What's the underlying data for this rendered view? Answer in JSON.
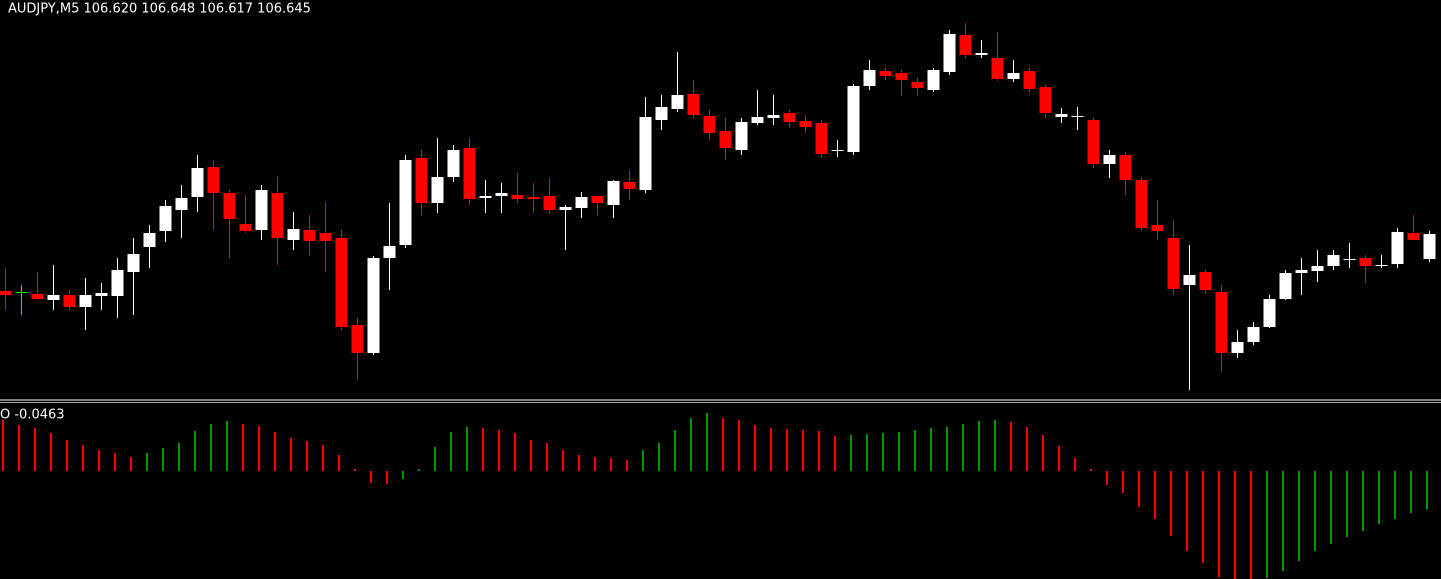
{
  "chart_data": [
    {
      "type": "candlestick",
      "title": "AUDJPY,M5  106.620 106.648 106.617 106.645",
      "ylim": [
        106.479,
        106.879
      ],
      "bull_color": "#ffffff",
      "bear_color": "#ff0000",
      "doji_color": "#00ff00",
      "open": [
        106.588,
        106.587,
        106.585,
        106.579,
        106.584,
        106.572,
        106.583,
        106.583,
        106.607,
        106.632,
        106.648,
        106.669,
        106.682,
        106.712,
        106.686,
        106.655,
        106.649,
        106.686,
        106.639,
        106.649,
        106.646,
        106.641,
        106.554,
        106.526,
        106.621,
        106.634,
        106.721,
        106.676,
        106.702,
        106.731,
        106.681,
        106.683,
        106.684,
        106.682,
        106.683,
        106.669,
        106.671,
        106.683,
        106.674,
        106.697,
        106.689,
        106.759,
        106.77,
        106.785,
        106.763,
        106.748,
        106.729,
        106.756,
        106.761,
        106.766,
        106.758,
        106.756,
        106.728,
        106.727,
        106.793,
        106.808,
        106.806,
        106.797,
        106.789,
        106.807,
        106.844,
        106.824,
        106.821,
        106.8,
        106.808,
        106.792,
        106.762,
        106.762,
        106.759,
        106.715,
        106.724,
        106.699,
        106.654,
        106.641,
        106.594,
        106.607,
        106.587,
        106.526,
        106.537,
        106.552,
        106.58,
        106.606,
        106.608,
        106.613,
        106.619,
        106.621,
        106.613,
        106.615,
        106.646,
        106.62
      ],
      "high": [
        106.611,
        106.594,
        106.607,
        106.614,
        106.589,
        106.601,
        106.596,
        106.621,
        106.641,
        106.654,
        106.679,
        106.694,
        106.724,
        106.719,
        106.689,
        106.684,
        106.694,
        106.702,
        106.667,
        106.664,
        106.677,
        106.649,
        106.561,
        106.623,
        106.676,
        106.724,
        106.729,
        106.741,
        106.734,
        106.741,
        106.699,
        106.696,
        106.706,
        106.696,
        106.701,
        106.674,
        106.687,
        106.684,
        106.699,
        106.709,
        106.782,
        106.784,
        106.827,
        106.799,
        106.769,
        106.761,
        106.761,
        106.789,
        106.784,
        106.769,
        106.764,
        106.759,
        106.739,
        106.795,
        106.819,
        106.811,
        106.809,
        106.801,
        106.811,
        106.849,
        106.856,
        106.839,
        106.847,
        106.819,
        106.811,
        106.794,
        106.771,
        106.772,
        106.761,
        106.729,
        106.727,
        106.701,
        106.679,
        106.659,
        106.634,
        106.609,
        106.594,
        106.549,
        106.557,
        106.584,
        106.609,
        106.621,
        106.629,
        106.629,
        106.636,
        106.624,
        106.624,
        106.651,
        106.664,
        106.648
      ],
      "low": [
        106.569,
        106.564,
        106.579,
        106.569,
        106.569,
        106.549,
        106.569,
        106.561,
        106.564,
        106.611,
        106.637,
        106.641,
        106.667,
        106.649,
        106.621,
        106.646,
        106.639,
        106.614,
        106.629,
        106.624,
        106.607,
        106.549,
        106.499,
        106.524,
        106.589,
        106.631,
        106.664,
        106.666,
        106.697,
        106.674,
        106.666,
        106.666,
        106.676,
        106.666,
        106.666,
        106.629,
        106.661,
        106.664,
        106.661,
        106.679,
        106.686,
        106.749,
        106.767,
        106.761,
        106.739,
        106.719,
        106.724,
        106.754,
        106.754,
        106.751,
        106.746,
        106.722,
        106.722,
        106.724,
        106.789,
        106.799,
        106.783,
        106.784,
        106.787,
        106.804,
        106.821,
        106.821,
        106.798,
        106.797,
        106.787,
        106.761,
        106.756,
        106.749,
        106.711,
        106.701,
        106.684,
        106.649,
        106.639,
        106.584,
        106.489,
        106.586,
        106.507,
        106.521,
        106.534,
        106.551,
        106.579,
        106.584,
        106.597,
        106.609,
        106.611,
        106.596,
        106.611,
        106.611,
        106.639,
        106.617
      ],
      "close": [
        106.584,
        106.587,
        106.58,
        106.584,
        106.572,
        106.584,
        106.586,
        106.609,
        106.625,
        106.646,
        106.673,
        106.681,
        106.711,
        106.686,
        106.66,
        106.648,
        106.689,
        106.641,
        106.65,
        106.638,
        106.638,
        106.552,
        106.526,
        106.621,
        106.633,
        106.719,
        106.676,
        106.702,
        106.729,
        106.68,
        106.683,
        106.686,
        106.68,
        106.68,
        106.669,
        106.672,
        106.682,
        106.676,
        106.698,
        106.69,
        106.762,
        106.772,
        106.784,
        106.764,
        106.746,
        106.731,
        106.757,
        106.762,
        106.764,
        106.757,
        106.752,
        106.725,
        106.729,
        106.793,
        106.809,
        106.803,
        106.799,
        106.791,
        106.809,
        106.845,
        106.824,
        106.826,
        106.8,
        106.806,
        106.79,
        106.766,
        106.765,
        106.763,
        106.715,
        106.724,
        106.699,
        106.651,
        106.648,
        106.59,
        106.604,
        106.589,
        106.526,
        106.537,
        106.552,
        106.58,
        106.606,
        106.609,
        106.613,
        106.624,
        106.62,
        106.613,
        106.614,
        106.647,
        106.639,
        106.645
      ]
    },
    {
      "type": "bar",
      "title": "O -0.0463",
      "ylim": [
        -0.1296,
        0.0816
      ],
      "up_color": "#009900",
      "down_color": "#ff0000",
      "values": [
        0.0612,
        0.0552,
        0.0516,
        0.0456,
        0.0372,
        0.0312,
        0.0252,
        0.0216,
        0.0168,
        0.0216,
        0.0276,
        0.0336,
        0.048,
        0.0564,
        0.06,
        0.0564,
        0.054,
        0.0468,
        0.0396,
        0.036,
        0.0312,
        0.0192,
        0.0024,
        -0.0144,
        -0.0156,
        -0.0096,
        0.0024,
        0.0288,
        0.0468,
        0.0528,
        0.0516,
        0.0492,
        0.0456,
        0.0372,
        0.0336,
        0.0252,
        0.0192,
        0.0168,
        0.0156,
        0.0132,
        0.0252,
        0.0336,
        0.0492,
        0.0636,
        0.0696,
        0.0636,
        0.0612,
        0.0552,
        0.0516,
        0.0504,
        0.0492,
        0.048,
        0.042,
        0.0432,
        0.0444,
        0.0456,
        0.0468,
        0.0492,
        0.0516,
        0.0528,
        0.0564,
        0.06,
        0.0612,
        0.0588,
        0.0528,
        0.0432,
        0.03,
        0.0156,
        0.0024,
        -0.0168,
        -0.0264,
        -0.0432,
        -0.0576,
        -0.078,
        -0.096,
        -0.1104,
        -0.1272,
        -0.1296,
        -0.132,
        -0.1284,
        -0.12,
        -0.108,
        -0.096,
        -0.0876,
        -0.0792,
        -0.072,
        -0.0636,
        -0.0576,
        -0.0504,
        -0.0463
      ]
    }
  ]
}
